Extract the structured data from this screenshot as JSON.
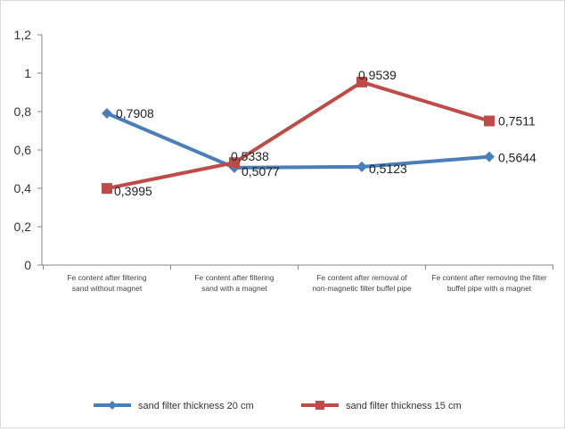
{
  "chart_data": {
    "type": "line",
    "title": "",
    "xlabel": "",
    "ylabel": "",
    "ylim": [
      0,
      1.2
    ],
    "yticks": [
      "0",
      "0,2",
      "0,4",
      "0,6",
      "0,8",
      "1",
      "1,2"
    ],
    "grid": false,
    "legend_position": "bottom",
    "categories": [
      [
        "Fe content after filtering",
        "sand without magnet"
      ],
      [
        "Fe content after filtering",
        "sand with a magnet"
      ],
      [
        "Fe content after removal of",
        "non-magnetic filter buffel pipe"
      ],
      [
        "Fe content after removing the filter",
        "buffel pipe with a magnet"
      ]
    ],
    "series": [
      {
        "name": "sand filter thickness 20 cm",
        "color": "#4a7ebb",
        "marker": "diamond",
        "values": [
          0.7908,
          0.5077,
          0.5123,
          0.5644
        ],
        "labels": [
          "0,7908",
          "0,5077",
          "0,5123",
          "0,5644"
        ]
      },
      {
        "name": "sand filter thickness 15 cm",
        "color": "#be4b48",
        "marker": "square",
        "values": [
          0.3995,
          0.5338,
          0.9539,
          0.7511
        ],
        "labels": [
          "0,3995",
          "0,5338",
          "0,9539",
          "0,7511"
        ]
      }
    ]
  }
}
